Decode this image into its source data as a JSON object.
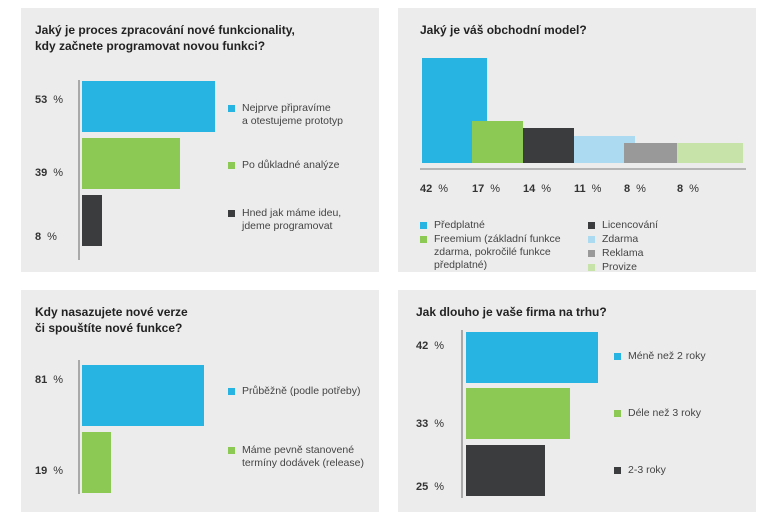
{
  "colors": {
    "blue": "#27b4e2",
    "green": "#8bc954",
    "dark": "#3b3c3e",
    "lightblue": "#acdaf0",
    "gray": "#999999",
    "lightgreen": "#c8e3a9"
  },
  "chart_data": [
    {
      "type": "bar",
      "orientation": "horizontal",
      "title": "Jaký je proces zpracování nové funkcionality, kdy začnete programovat novou funkci?",
      "title_lines": [
        "Jaký je proces zpracování nové funkcionality,",
        "kdy začnete programovat novou funkci?"
      ],
      "series": [
        {
          "name": "Nejprve připravíme a otestujeme prototyp",
          "name_lines": [
            "Nejprve připravíme",
            "a otestujeme prototyp"
          ],
          "value": 53,
          "value_label": "53",
          "color": "#27b4e2"
        },
        {
          "name": "Po důkladné analýze",
          "name_lines": [
            "Po důkladné analýze"
          ],
          "value": 39,
          "value_label": "39",
          "color": "#8bc954"
        },
        {
          "name": "Hned jak máme ideu, jdeme programovat",
          "name_lines": [
            "Hned jak máme ideu,",
            "jdeme programovat"
          ],
          "value": 8,
          "value_label": "8",
          "color": "#3b3c3e"
        }
      ],
      "unit": "%"
    },
    {
      "type": "bar",
      "orientation": "vertical",
      "title": "Jaký je váš obchodní model?",
      "title_lines": [
        "Jaký je váš obchodní model?"
      ],
      "series": [
        {
          "name": "Předplatné",
          "name_lines": [
            "Předplatné"
          ],
          "value": 42,
          "value_label": "42",
          "color": "#27b4e2"
        },
        {
          "name": "Freemium (základní funkce zdarma, pokročilé funkce předplatné)",
          "name_lines": [
            "Freemium (základní funkce",
            "zdarma, pokročilé funkce",
            "předplatné)"
          ],
          "value": 17,
          "value_label": "17",
          "color": "#8bc954"
        },
        {
          "name": "Licencování",
          "name_lines": [
            "Licencování"
          ],
          "value": 14,
          "value_label": "14",
          "color": "#3b3c3e"
        },
        {
          "name": "Zdarma",
          "name_lines": [
            "Zdarma"
          ],
          "value": 11,
          "value_label": "11",
          "color": "#acdaf0"
        },
        {
          "name": "Reklama",
          "name_lines": [
            "Reklama"
          ],
          "value": 8,
          "value_label": "8",
          "color": "#999999"
        },
        {
          "name": "Provize",
          "name_lines": [
            "Provize"
          ],
          "value": 8,
          "value_label": "8",
          "color": "#c8e3a9"
        }
      ],
      "unit": "%"
    },
    {
      "type": "bar",
      "orientation": "horizontal",
      "title": "Kdy nasazujete nové verze či spouštíte nové funkce?",
      "title_lines": [
        "Kdy nasazujete nové verze",
        "či spouštíte nové funkce?"
      ],
      "series": [
        {
          "name": "Průběžně (podle potřeby)",
          "name_lines": [
            "Průběžně (podle potřeby)"
          ],
          "value": 81,
          "value_label": "81",
          "color": "#27b4e2"
        },
        {
          "name": "Máme pevně stanovené termíny dodávek (release)",
          "name_lines": [
            "Máme pevně stanovené",
            "termíny dodávek (release)"
          ],
          "value": 19,
          "value_label": "19",
          "color": "#8bc954"
        }
      ],
      "unit": "%"
    },
    {
      "type": "bar",
      "orientation": "horizontal",
      "title": "Jak dlouho je vaše firma na trhu?",
      "title_lines": [
        "Jak dlouho je vaše firma na trhu?"
      ],
      "series": [
        {
          "name": "Méně než 2 roky",
          "name_lines": [
            "Méně než 2 roky"
          ],
          "value": 42,
          "value_label": "42",
          "color": "#27b4e2"
        },
        {
          "name": "Déle než 3 roky",
          "name_lines": [
            "Déle než 3 roky"
          ],
          "value": 33,
          "value_label": "33",
          "color": "#8bc954"
        },
        {
          "name": "2-3 roky",
          "name_lines": [
            "2-3 roky"
          ],
          "value": 25,
          "value_label": "25",
          "color": "#3b3c3e"
        }
      ],
      "unit": "%"
    }
  ]
}
